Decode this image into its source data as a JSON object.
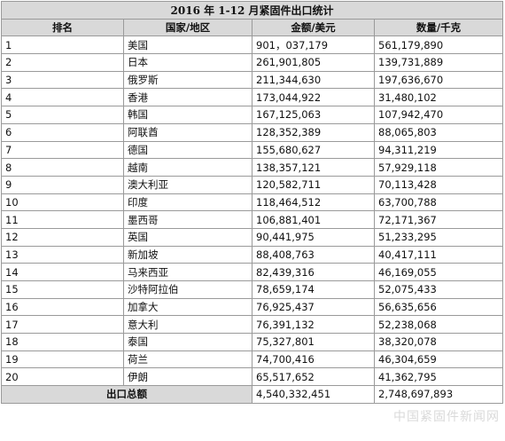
{
  "title": "2016 年 1-12 月紧固件出口统计",
  "headers": [
    "排名",
    "国家/地区",
    "金额/美元",
    "数量/千克"
  ],
  "rows": [
    {
      "rank": "1",
      "country": "美国",
      "amount": "901，037,179",
      "quantity": "561,179,890"
    },
    {
      "rank": "2",
      "country": "日本",
      "amount": "261,901,805",
      "quantity": "139,731,889"
    },
    {
      "rank": "3",
      "country": "俄罗斯",
      "amount": "211,344,630",
      "quantity": "197,636,670"
    },
    {
      "rank": "4",
      "country": "香港",
      "amount": "173,044,922",
      "quantity": "31,480,102"
    },
    {
      "rank": "5",
      "country": "韩国",
      "amount": "167,125,063",
      "quantity": "107,942,470"
    },
    {
      "rank": "6",
      "country": "阿联酋",
      "amount": "128,352,389",
      "quantity": "88,065,803"
    },
    {
      "rank": "7",
      "country": "德国",
      "amount": "155,680,627",
      "quantity": "94,311,219"
    },
    {
      "rank": "8",
      "country": "越南",
      "amount": "138,357,121",
      "quantity": "57,929,118"
    },
    {
      "rank": "9",
      "country": "澳大利亚",
      "amount": "120,582,711",
      "quantity": "70,113,428"
    },
    {
      "rank": "10",
      "country": "印度",
      "amount": "118,464,512",
      "quantity": "63,700,788"
    },
    {
      "rank": "11",
      "country": "墨西哥",
      "amount": "106,881,401",
      "quantity": "72,171,367"
    },
    {
      "rank": "12",
      "country": "英国",
      "amount": "90,441,975",
      "quantity": "51,233,295"
    },
    {
      "rank": "13",
      "country": "新加坡",
      "amount": "88,408,763",
      "quantity": "40,417,111"
    },
    {
      "rank": "14",
      "country": "马来西亚",
      "amount": "82,439,316",
      "quantity": "46,169,055"
    },
    {
      "rank": "15",
      "country": "沙特阿拉伯",
      "amount": "78,659,174",
      "quantity": "52,075,433"
    },
    {
      "rank": "16",
      "country": "加拿大",
      "amount": "76,925,437",
      "quantity": "56,635,656"
    },
    {
      "rank": "17",
      "country": "意大利",
      "amount": "76,391,132",
      "quantity": "52,238,068"
    },
    {
      "rank": "18",
      "country": "泰国",
      "amount": "75,327,801",
      "quantity": "38,320,078"
    },
    {
      "rank": "19",
      "country": "荷兰",
      "amount": "74,700,416",
      "quantity": "46,304,659"
    },
    {
      "rank": "20",
      "country": "伊朗",
      "amount": "65,517,652",
      "quantity": "41,362,795"
    }
  ],
  "total": {
    "label": "出口总额",
    "amount": "4,540,332,451",
    "quantity": "2,748,697,893"
  },
  "watermark": "中国紧固件新闻网"
}
